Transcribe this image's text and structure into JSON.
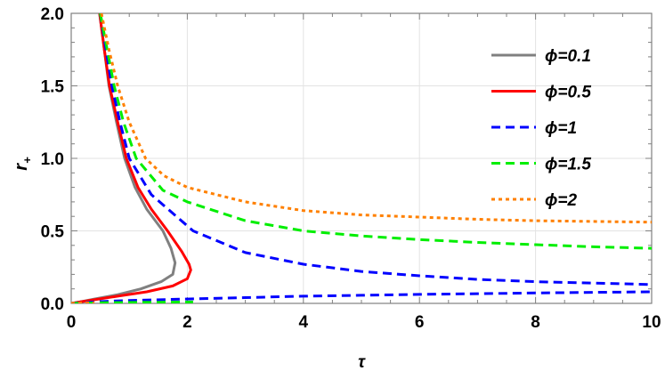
{
  "chart_data": {
    "type": "line",
    "title": "",
    "xlabel": "τ",
    "ylabel": "r+",
    "ylabel_main": "r",
    "ylabel_sub": "+",
    "xlim": [
      0,
      10
    ],
    "ylim": [
      0,
      2
    ],
    "xticks": [
      "0",
      "2",
      "4",
      "6",
      "8",
      "10"
    ],
    "yticks": [
      "0.0",
      "0.5",
      "1.0",
      "1.5",
      "2.0"
    ],
    "grid": true,
    "legend_position": "top-right",
    "series": [
      {
        "name": "ϕ=0.1",
        "color": "#808080",
        "style": "solid",
        "branches": [
          [
            [
              0.49,
              2.0
            ],
            [
              0.57,
              1.75
            ],
            [
              0.65,
              1.5
            ],
            [
              0.78,
              1.25
            ],
            [
              0.92,
              1.0
            ],
            [
              1.1,
              0.8
            ],
            [
              1.3,
              0.65
            ],
            [
              1.58,
              0.5
            ],
            [
              1.72,
              0.38
            ],
            [
              1.79,
              0.28
            ],
            [
              1.75,
              0.2
            ],
            [
              1.55,
              0.15
            ],
            [
              1.2,
              0.1
            ],
            [
              0.8,
              0.06
            ],
            [
              0.4,
              0.03
            ],
            [
              0.15,
              0.01
            ],
            [
              0,
              0
            ]
          ]
        ]
      },
      {
        "name": "ϕ=0.5",
        "color": "#ff0000",
        "style": "solid",
        "branches": [
          [
            [
              0.49,
              2.0
            ],
            [
              0.57,
              1.75
            ],
            [
              0.66,
              1.5
            ],
            [
              0.8,
              1.25
            ],
            [
              0.95,
              1.0
            ],
            [
              1.15,
              0.8
            ],
            [
              1.38,
              0.65
            ],
            [
              1.66,
              0.5
            ],
            [
              1.9,
              0.36
            ],
            [
              2.03,
              0.27
            ],
            [
              2.06,
              0.23
            ],
            [
              2.0,
              0.17
            ],
            [
              1.75,
              0.12
            ],
            [
              1.3,
              0.08
            ],
            [
              0.8,
              0.05
            ],
            [
              0.4,
              0.025
            ],
            [
              0.15,
              0.01
            ],
            [
              0,
              0
            ]
          ]
        ]
      },
      {
        "name": "ϕ=1",
        "color": "#0000ff",
        "style": "dashed",
        "branches": [
          [
            [
              0.5,
              2.0
            ],
            [
              0.6,
              1.75
            ],
            [
              0.7,
              1.5
            ],
            [
              0.84,
              1.25
            ],
            [
              1.0,
              1.0
            ],
            [
              1.38,
              0.75
            ],
            [
              2.1,
              0.5
            ],
            [
              3.0,
              0.35
            ],
            [
              4,
              0.27
            ],
            [
              5,
              0.22
            ],
            [
              6,
              0.19
            ],
            [
              7,
              0.165
            ],
            [
              8,
              0.15
            ],
            [
              9,
              0.14
            ],
            [
              10,
              0.13
            ]
          ],
          [
            [
              0,
              0
            ],
            [
              0.5,
              0.012
            ],
            [
              1,
              0.02
            ],
            [
              2,
              0.03
            ],
            [
              3,
              0.04
            ],
            [
              4,
              0.05
            ],
            [
              5,
              0.056
            ],
            [
              6,
              0.062
            ],
            [
              7,
              0.067
            ],
            [
              8,
              0.072
            ],
            [
              9,
              0.076
            ],
            [
              10,
              0.08
            ]
          ]
        ]
      },
      {
        "name": "ϕ=1.5",
        "color": "#00ee00",
        "style": "dashed",
        "branches": [
          [
            [
              0.5,
              2.0
            ],
            [
              0.62,
              1.75
            ],
            [
              0.74,
              1.5
            ],
            [
              0.9,
              1.25
            ],
            [
              1.12,
              1.0
            ],
            [
              1.58,
              0.78
            ],
            [
              2,
              0.7
            ],
            [
              3,
              0.57
            ],
            [
              4,
              0.5
            ],
            [
              5,
              0.465
            ],
            [
              6,
              0.44
            ],
            [
              7,
              0.42
            ],
            [
              8,
              0.405
            ],
            [
              9,
              0.39
            ],
            [
              10,
              0.38
            ]
          ],
          [
            [
              0,
              0
            ],
            [
              0.5,
              0.004
            ],
            [
              1,
              0.007
            ],
            [
              1.5,
              0.008
            ],
            [
              2.1,
              0.01
            ]
          ]
        ]
      },
      {
        "name": "ϕ=2",
        "color": "#ff8000",
        "style": "dotted",
        "branches": [
          [
            [
              0.52,
              2.0
            ],
            [
              0.65,
              1.75
            ],
            [
              0.8,
              1.5
            ],
            [
              1.0,
              1.25
            ],
            [
              1.28,
              1.0
            ],
            [
              1.6,
              0.88
            ],
            [
              2,
              0.8
            ],
            [
              3,
              0.7
            ],
            [
              4,
              0.64
            ],
            [
              5,
              0.61
            ],
            [
              6,
              0.595
            ],
            [
              7,
              0.58
            ],
            [
              8,
              0.57
            ],
            [
              9,
              0.565
            ],
            [
              10,
              0.56
            ]
          ],
          [
            [
              0,
              0
            ],
            [
              0.2,
              0.003
            ],
            [
              0.4,
              0.005
            ]
          ]
        ]
      }
    ]
  }
}
